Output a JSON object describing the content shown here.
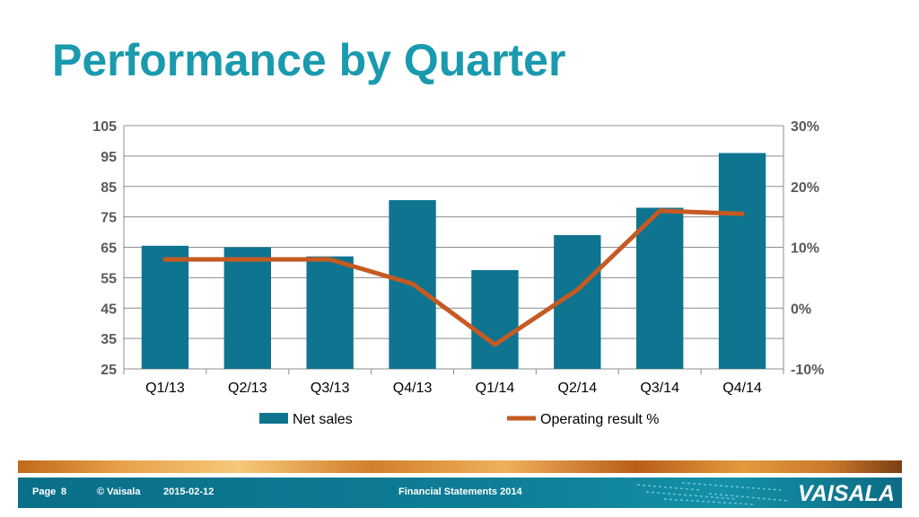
{
  "slide": {
    "title": "Performance by Quarter"
  },
  "footer": {
    "page_label": "Page",
    "page_number": "8",
    "copyright": "© Vaisala",
    "date": "2015-02-12",
    "document": "Financial Statements 2014",
    "logo": "VAISALA"
  },
  "colors": {
    "title": "#1a9aae",
    "bar": "#0e7490",
    "line": "#c55a22",
    "footer": "#0e7e96"
  },
  "chart_data": {
    "type": "bar",
    "title": "",
    "categories": [
      "Q1/13",
      "Q2/13",
      "Q3/13",
      "Q4/13",
      "Q1/14",
      "Q2/14",
      "Q3/14",
      "Q4/14"
    ],
    "series": [
      {
        "name": "Net sales",
        "kind": "bar",
        "axis": "left",
        "values": [
          65.5,
          65,
          62,
          80.5,
          57.5,
          69,
          78,
          96
        ]
      },
      {
        "name": "Operating result %",
        "kind": "line",
        "axis": "right",
        "values": [
          8,
          8,
          8,
          4,
          -6,
          3,
          16,
          15.5
        ]
      }
    ],
    "ylim_left": [
      25,
      105
    ],
    "yticks_left": [
      25,
      35,
      45,
      55,
      65,
      75,
      85,
      95,
      105
    ],
    "ylim_right": [
      -10,
      30
    ],
    "yticks_right": [
      "-10%",
      "0%",
      "10%",
      "20%",
      "30%"
    ],
    "grid": true,
    "legend": "bottom"
  }
}
